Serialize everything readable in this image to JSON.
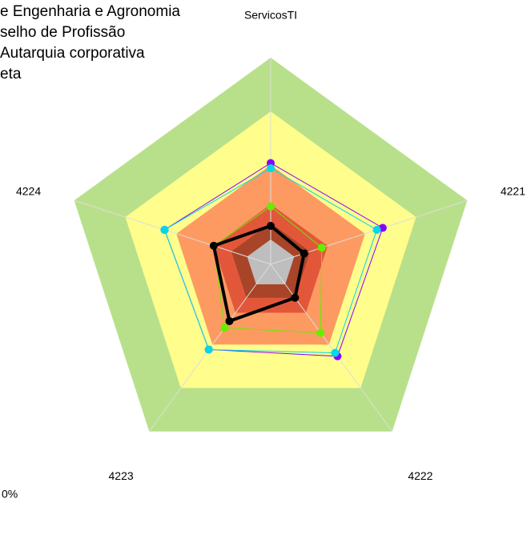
{
  "chart_data": {
    "type": "radar",
    "categories": [
      "ServicosTI",
      "4221",
      "4222",
      "4223",
      "4224"
    ],
    "ylim": [
      0,
      100
    ],
    "bands": [
      {
        "value": 100,
        "color": "#b8e08a"
      },
      {
        "value": 74,
        "color": "#fffd8c"
      },
      {
        "value": 48,
        "color": "#fd9a62"
      },
      {
        "value": 29,
        "color": "#e2573a"
      },
      {
        "value": 20,
        "color": "#a84428"
      },
      {
        "value": 12,
        "color": "#bebebe"
      }
    ],
    "series": [
      {
        "name": "e Engenharia e Agronomia",
        "color": "#8a00ff",
        "values": [
          49,
          57,
          55,
          51,
          54
        ]
      },
      {
        "name": "selho de Profissão",
        "color": "#00d8e8",
        "values": [
          46.5,
          54,
          53,
          51,
          54
        ]
      },
      {
        "name": "Autarquia corporativa",
        "color": "#66ee00",
        "values": [
          28,
          26,
          41,
          38,
          29
        ]
      },
      {
        "name": "eta",
        "color": "#000000",
        "values": [
          18.6,
          17,
          20,
          34,
          29
        ]
      }
    ],
    "annotation": "0%"
  }
}
